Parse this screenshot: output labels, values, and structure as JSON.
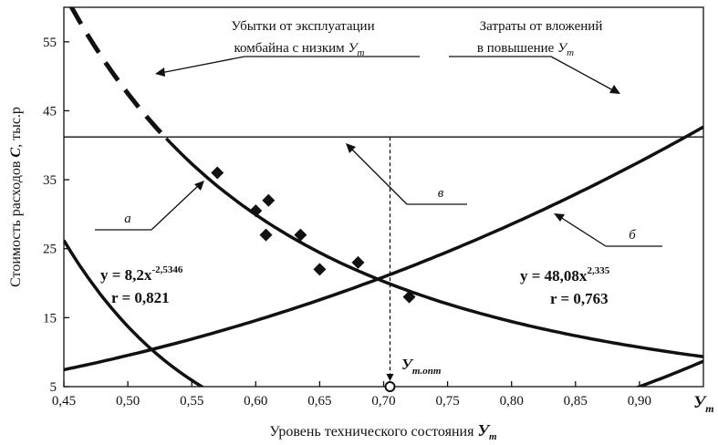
{
  "chart_data": {
    "type": "line",
    "xlabel_text": "Уровень технического состояния",
    "xlabel_var": "У",
    "xlabel_sub": "т",
    "ylabel_text": "Стоимость расходов",
    "ylabel_var": "С",
    "ylabel_unit": ", тыс.р",
    "xlim": [
      0.45,
      0.95
    ],
    "ylim": [
      5,
      60
    ],
    "x_ticks": [
      0.45,
      0.5,
      0.55,
      0.6,
      0.65,
      0.7,
      0.75,
      0.8,
      0.85,
      0.9
    ],
    "x_tick_labels": [
      "0,45",
      "0,50",
      "0,55",
      "0,60",
      "0,65",
      "0,70",
      "0,75",
      "0,80",
      "0,85",
      "0,90"
    ],
    "y_ticks": [
      5,
      15,
      25,
      35,
      45,
      55
    ],
    "y_tick_labels": [
      "5",
      "15",
      "25",
      "35",
      "45",
      "55"
    ],
    "x_axis_end_var": "У",
    "x_axis_end_sub": "т",
    "series": [
      {
        "name": "a",
        "label": "а",
        "equation": "y = 8,2x",
        "exponent": "-2,5346",
        "r_text": "r = 0,821",
        "coef": 8.2,
        "power": -2.5346
      },
      {
        "name": "b",
        "label": "б",
        "equation": "y = 48,08x",
        "exponent": "2,335",
        "r_text": "r = 0,763",
        "coef": 48.08,
        "power": 2.335
      }
    ],
    "scatter_points": [
      {
        "x": 0.57,
        "y": 36
      },
      {
        "x": 0.6,
        "y": 30.5
      },
      {
        "x": 0.61,
        "y": 32
      },
      {
        "x": 0.608,
        "y": 27
      },
      {
        "x": 0.635,
        "y": 27
      },
      {
        "x": 0.65,
        "y": 22
      },
      {
        "x": 0.68,
        "y": 23
      },
      {
        "x": 0.72,
        "y": 18
      }
    ],
    "min_cost_level": 41.2,
    "optimum": {
      "x": 0.705,
      "label_var": "У",
      "label_sub": "т.опт"
    },
    "annotations": {
      "left_title_line1": "Убытки от эксплуатации",
      "left_title_line2": "комбайна с низким",
      "left_title_var": "У",
      "left_title_sub": "т",
      "right_title_line1": "Затраты от вложений",
      "right_title_line2": "в повышение",
      "right_title_var": "У",
      "right_title_sub": "т",
      "label_v": "в"
    }
  }
}
